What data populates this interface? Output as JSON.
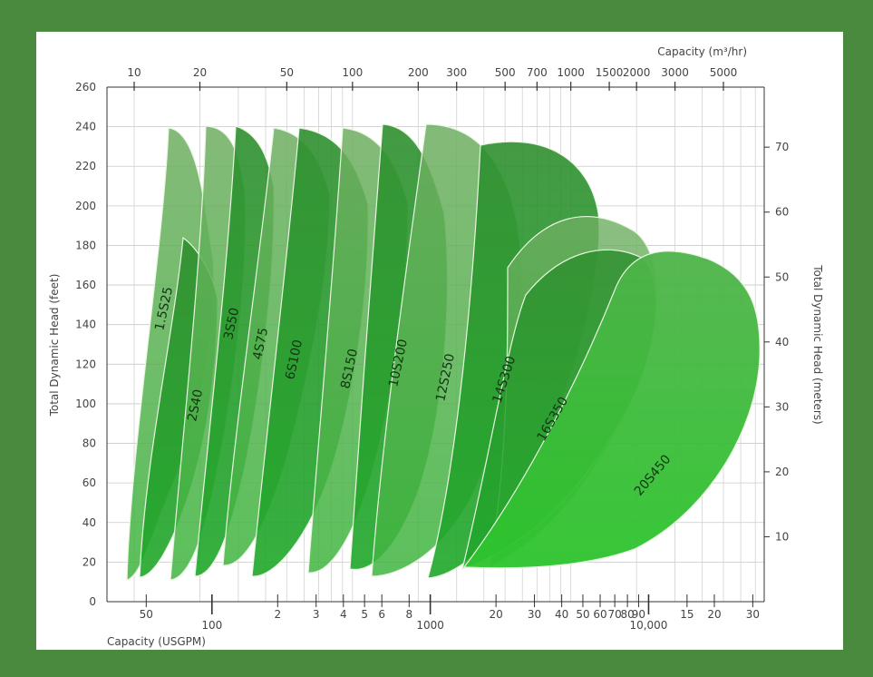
{
  "chart_data": {
    "type": "area",
    "y_left": {
      "label": "Total Dynamic Head (feet)",
      "range": [
        0,
        260
      ],
      "ticks": [
        "0",
        "20",
        "40",
        "60",
        "80",
        "100",
        "120",
        "140",
        "160",
        "180",
        "200",
        "220",
        "240",
        "260"
      ]
    },
    "y_right": {
      "label": "Total Dynamic Head (meters)",
      "ticks": [
        "10",
        "20",
        "30",
        "40",
        "50",
        "60",
        "70"
      ]
    },
    "x_top": {
      "label": "Capacity (m³/hr)",
      "ticks": [
        "10",
        "20",
        "50",
        "100",
        "200",
        "300",
        "500",
        "700",
        "1000",
        "1500",
        "2000",
        "3000",
        "5000"
      ]
    },
    "x_bottom": {
      "label": "Capacity (USGPM)",
      "ticks": [
        "50",
        "100",
        "2",
        "3",
        "4",
        "5",
        "6",
        "8",
        "1000",
        "20",
        "30",
        "40",
        "50",
        "60",
        "70",
        "80",
        "90",
        "10,000",
        "15",
        "20",
        "30"
      ]
    },
    "series": [
      {
        "name": "1.5S25",
        "head_max": 240
      },
      {
        "name": "2S40",
        "head_max": 184
      },
      {
        "name": "3S50",
        "head_max": 240
      },
      {
        "name": "4S75",
        "head_max": 240
      },
      {
        "name": "6S100",
        "head_max": 240
      },
      {
        "name": "8S150",
        "head_max": 240
      },
      {
        "name": "10S200",
        "head_max": 240
      },
      {
        "name": "12S250",
        "head_max": 240
      },
      {
        "name": "14S300",
        "head_max": 237
      },
      {
        "name": "16S350",
        "head_max": 191
      },
      {
        "name": "20S450",
        "head_max": 181
      }
    ],
    "grid": true,
    "colors": {
      "light": "#7fbf6f",
      "mid": "#35a335",
      "dark": "#1e8a28",
      "bright": "#33c233"
    }
  }
}
